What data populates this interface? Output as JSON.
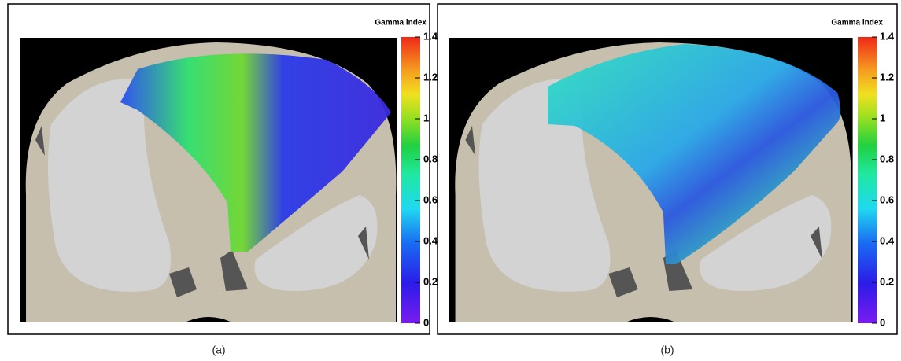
{
  "panels": [
    {
      "caption": "(a)",
      "colorbar": {
        "title": "Gamma index",
        "lim": [
          0,
          1.4
        ],
        "ticks": [
          0,
          0.2,
          0.4,
          0.6,
          0.8,
          1,
          1.2,
          1.4
        ]
      }
    },
    {
      "caption": "(b)",
      "colorbar": {
        "title": "Gamma index",
        "lim": [
          0,
          1.4
        ],
        "ticks": [
          0,
          0.2,
          0.4,
          0.6,
          0.8,
          1,
          1.2,
          1.4
        ]
      }
    }
  ]
}
